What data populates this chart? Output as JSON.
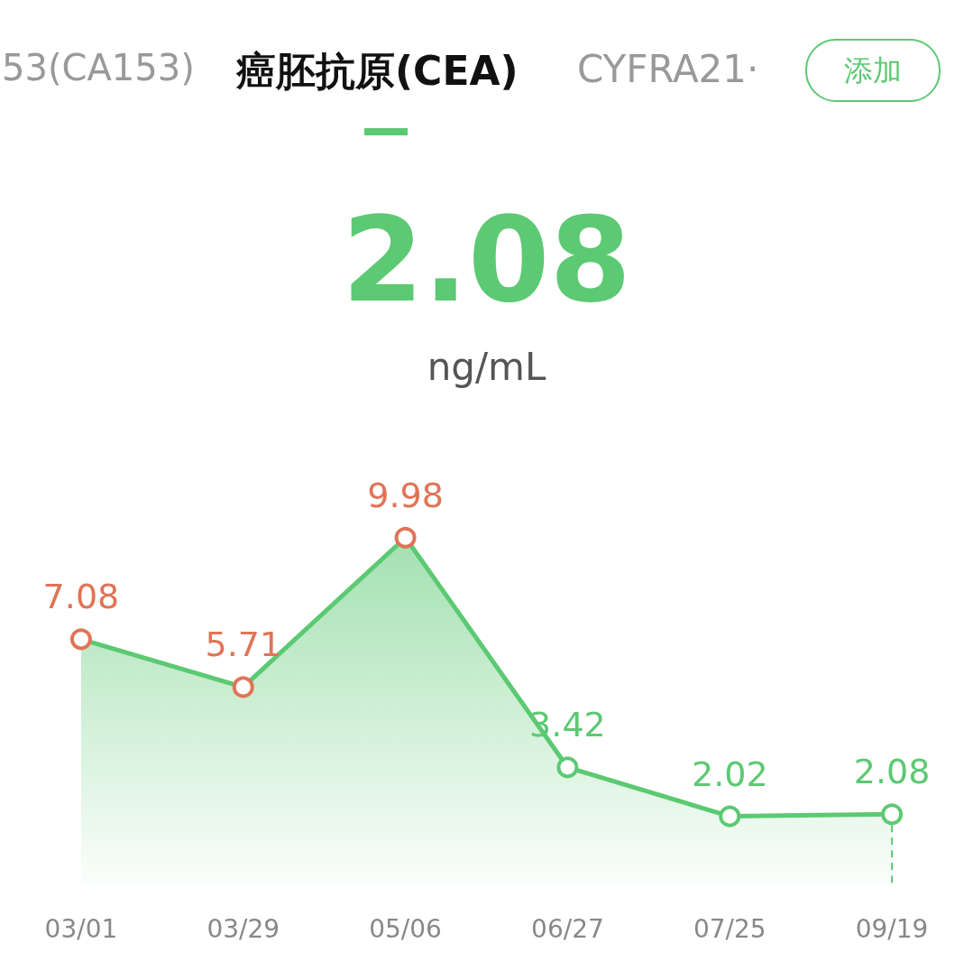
{
  "chart_data": {
    "type": "area",
    "title": "癌胚抗原(CEA)",
    "subtitle": "2.08",
    "annotations": [
      "53(CA153)",
      "CYFRA21·",
      "添加",
      "ng/mL"
    ],
    "categories": [
      "03/01",
      "03/29",
      "05/06",
      "06/27",
      "07/25",
      "09/19"
    ],
    "series": [
      {
        "color": "#5cc973",
        "colors": [
          "#e07456",
          "#e07456",
          "#e07456",
          "#5cc973",
          "#5cc973",
          "#5cc973"
        ],
        "values": [
          7.08,
          5.71,
          9.98,
          3.42,
          2.02,
          2.08
        ]
      }
    ],
    "tick_labels": "x",
    "grid": false,
    "marker": "circle",
    "line_style": "solid",
    "data_labels": true,
    "ref_lines": [
      {
        "axis": "x",
        "value": "09/19",
        "line_style": "dashed",
        "color": "#5cc973"
      }
    ]
  }
}
